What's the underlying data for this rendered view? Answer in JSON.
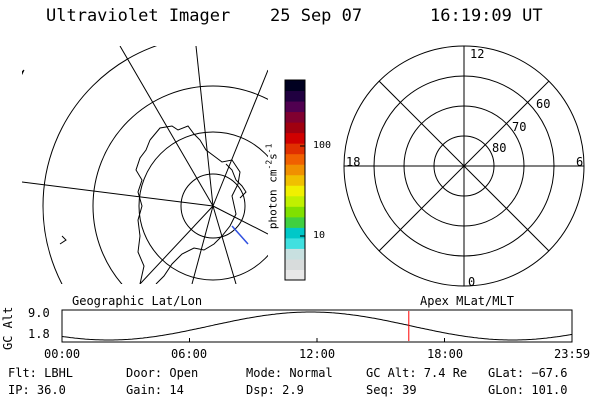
{
  "header": {
    "title": "Ultraviolet Imager",
    "date": "25 Sep 07",
    "time": "16:19:09 UT"
  },
  "colorbar": {
    "label_prefix": "photon cm",
    "label_exp1": "-2",
    "label_mid": "s",
    "label_exp2": "-1",
    "ticks": [
      "100",
      "10"
    ],
    "colors": [
      "#e8e8e8",
      "#d8dcdc",
      "#c8e0e0",
      "#40e0e0",
      "#00c8c8",
      "#40d040",
      "#80e000",
      "#c0f000",
      "#f0f000",
      "#f0c000",
      "#f09000",
      "#f06000",
      "#e03000",
      "#d00000",
      "#a00010",
      "#800030",
      "#500050",
      "#200040",
      "#000020"
    ]
  },
  "polar_plot": {
    "mlt_labels": {
      "top": "12",
      "left": "18",
      "right": "6",
      "bottom": "0"
    },
    "lat_labels": [
      "60",
      "70",
      "80"
    ]
  },
  "map_labels": {
    "left": "Geographic Lat/Lon",
    "right": "Apex MLat/MLT"
  },
  "alt_plot": {
    "ylabel": "GC Alt",
    "yticks": [
      "9.0",
      "1.8"
    ],
    "xticks": [
      "00:00",
      "06:00",
      "12:00",
      "18:00",
      "23:59"
    ],
    "current_hour": 16.32,
    "ymin": 1.8,
    "ymax": 9.0,
    "marker_color": "#ff0000"
  },
  "status": {
    "flt": "Flt: LBHL",
    "door": "Door: Open",
    "mode": "Mode: Normal",
    "gcalt": "GC Alt: 7.4 Re",
    "glat": "GLat: −67.6",
    "ip": "IP: 36.0",
    "gain": "Gain: 14",
    "dsp": "Dsp:   2.9",
    "seq": "Seq: 39",
    "glon": "GLon: 101.0"
  }
}
